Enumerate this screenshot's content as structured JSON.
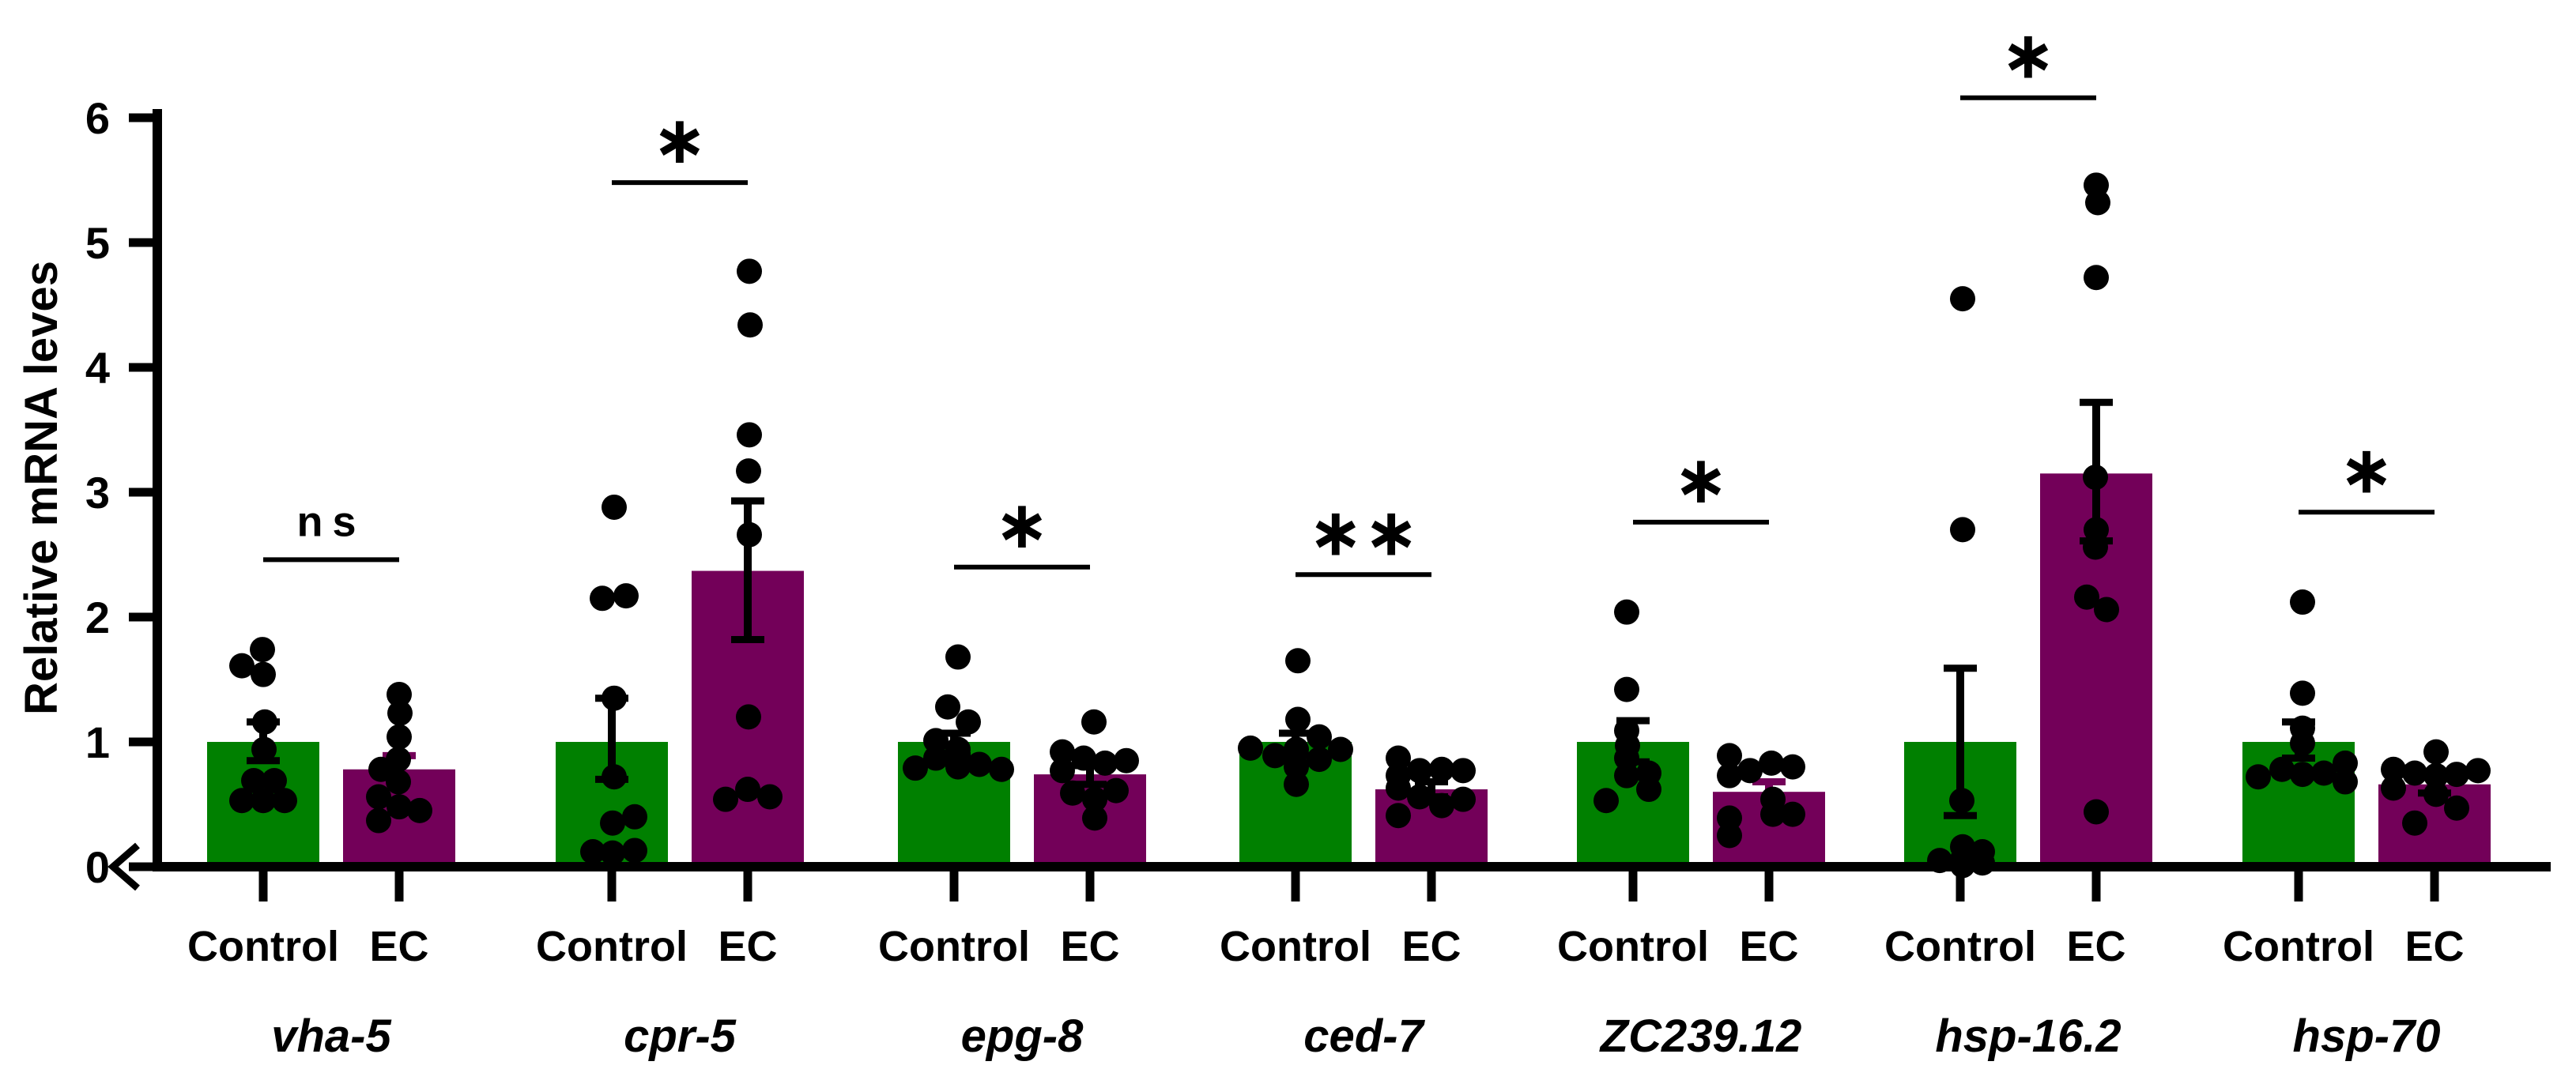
{
  "figure": {
    "background": "#ffffff"
  },
  "chart_data": {
    "type": "bar",
    "title": "",
    "ylabel": "Relative mRNA leves",
    "xlabel": "",
    "ylim": [
      0,
      6
    ],
    "yticks": [
      0,
      1,
      2,
      3,
      4,
      5,
      6
    ],
    "grid": false,
    "legend": "none",
    "origin_arrow": "<",
    "series_names": [
      "Control",
      "EC"
    ],
    "colors": {
      "control": "#008000",
      "ec": "#730059",
      "dots": "#000000",
      "axis": "#000000"
    },
    "groups": [
      {
        "gene": "vha-5",
        "sig": "ns",
        "sig_y": 2.46,
        "bars": [
          {
            "label": "Control",
            "value": 1.0,
            "color": "#008000",
            "err": [
              0.85,
              1.16
            ],
            "err_color": "#000000",
            "dots": [
              [
                -1,
                1.74
              ],
              [
                -27,
                1.61
              ],
              [
                0,
                1.54
              ],
              [
                2,
                1.16
              ],
              [
                1,
                0.94
              ],
              [
                -12,
                0.69
              ],
              [
                14,
                0.69
              ],
              [
                -27,
                0.53
              ],
              [
                0,
                0.53
              ],
              [
                27,
                0.53
              ]
            ]
          },
          {
            "label": "EC",
            "value": 0.78,
            "color": "#730059",
            "err": [
              0.67,
              0.89
            ],
            "err_color": "#730059",
            "dots": [
              [
                0,
                1.38
              ],
              [
                1,
                1.23
              ],
              [
                0,
                1.04
              ],
              [
                -1,
                0.86
              ],
              [
                -23,
                0.78
              ],
              [
                -1,
                0.68
              ],
              [
                -26,
                0.56
              ],
              [
                0,
                0.48
              ],
              [
                26,
                0.45
              ],
              [
                -26,
                0.37
              ]
            ]
          }
        ]
      },
      {
        "gene": "cpr-5",
        "sig": "*",
        "sig_y": 5.48,
        "bars": [
          {
            "label": "Control",
            "value": 1.0,
            "color": "#008000",
            "err": [
              0.7,
              1.35
            ],
            "err_color": "#000000",
            "dots": [
              [
                3,
                2.88
              ],
              [
                -12,
                2.15
              ],
              [
                18,
                2.17
              ],
              [
                3,
                1.35
              ],
              [
                3,
                0.72
              ],
              [
                1,
                0.35
              ],
              [
                29,
                0.4
              ],
              [
                -24,
                0.12
              ],
              [
                1,
                0.11
              ],
              [
                29,
                0.13
              ]
            ]
          },
          {
            "label": "EC",
            "value": 2.37,
            "color": "#730059",
            "err": [
              1.82,
              2.93
            ],
            "err_color": "#000000",
            "dots": [
              [
                2,
                4.77
              ],
              [
                3,
                4.34
              ],
              [
                2,
                3.46
              ],
              [
                1,
                3.17
              ],
              [
                2,
                2.66
              ],
              [
                1,
                1.2
              ],
              [
                0,
                0.62
              ],
              [
                -28,
                0.54
              ],
              [
                28,
                0.56
              ]
            ]
          }
        ]
      },
      {
        "gene": "epg-8",
        "sig": "*",
        "sig_y": 2.4,
        "bars": [
          {
            "label": "Control",
            "value": 1.0,
            "color": "#008000",
            "err": [
              0.89,
              1.07
            ],
            "err_color": "#000000",
            "dots": [
              [
                5,
                1.68
              ],
              [
                -8,
                1.28
              ],
              [
                18,
                1.16
              ],
              [
                -23,
                1.01
              ],
              [
                5,
                0.94
              ],
              [
                -23,
                0.87
              ],
              [
                -49,
                0.79
              ],
              [
                5,
                0.8
              ],
              [
                32,
                0.82
              ],
              [
                60,
                0.78
              ]
            ]
          },
          {
            "label": "EC",
            "value": 0.74,
            "color": "#730059",
            "err": [
              0.66,
              0.81
            ],
            "err_color": "#000000",
            "dots": [
              [
                5,
                1.16
              ],
              [
                -35,
                0.92
              ],
              [
                -8,
                0.87
              ],
              [
                19,
                0.83
              ],
              [
                46,
                0.85
              ],
              [
                -35,
                0.77
              ],
              [
                -22,
                0.59
              ],
              [
                33,
                0.61
              ],
              [
                6,
                0.54
              ],
              [
                6,
                0.39
              ]
            ]
          }
        ]
      },
      {
        "gene": "ced-7",
        "sig": "**",
        "sig_y": 2.34,
        "bars": [
          {
            "label": "Control",
            "value": 1.0,
            "color": "#008000",
            "err": [
              0.89,
              1.07
            ],
            "err_color": "#000000",
            "dots": [
              [
                3,
                1.65
              ],
              [
                3,
                1.18
              ],
              [
                30,
                1.04
              ],
              [
                -57,
                0.95
              ],
              [
                1,
                0.94
              ],
              [
                57,
                0.94
              ],
              [
                -26,
                0.89
              ],
              [
                30,
                0.86
              ],
              [
                1,
                0.8
              ],
              [
                1,
                0.66
              ]
            ]
          },
          {
            "label": "EC",
            "value": 0.62,
            "color": "#730059",
            "err": [
              0.56,
              0.68
            ],
            "err_color": "#000000",
            "dots": [
              [
                -42,
                0.87
              ],
              [
                -42,
                0.73
              ],
              [
                -15,
                0.77
              ],
              [
                13,
                0.78
              ],
              [
                40,
                0.77
              ],
              [
                -42,
                0.63
              ],
              [
                -15,
                0.56
              ],
              [
                13,
                0.49
              ],
              [
                40,
                0.54
              ],
              [
                -42,
                0.41
              ]
            ]
          }
        ]
      },
      {
        "gene": "ZC239.12",
        "sig": "*",
        "sig_y": 2.76,
        "bars": [
          {
            "label": "Control",
            "value": 1.0,
            "color": "#008000",
            "err": [
              0.84,
              1.17
            ],
            "err_color": "#000000",
            "dots": [
              [
                -8,
                2.04
              ],
              [
                -8,
                1.42
              ],
              [
                -8,
                1.09
              ],
              [
                -7,
                0.97
              ],
              [
                -8,
                0.87
              ],
              [
                -8,
                0.73
              ],
              [
                20,
                0.75
              ],
              [
                20,
                0.62
              ],
              [
                -34,
                0.53
              ]
            ]
          },
          {
            "label": "EC",
            "value": 0.6,
            "color": "#730059",
            "err": [
              0.52,
              0.68
            ],
            "err_color": "#730059",
            "dots": [
              [
                -50,
                0.89
              ],
              [
                -50,
                0.73
              ],
              [
                -24,
                0.77
              ],
              [
                3,
                0.83
              ],
              [
                30,
                0.8
              ],
              [
                5,
                0.54
              ],
              [
                30,
                0.42
              ],
              [
                5,
                0.42
              ],
              [
                -50,
                0.39
              ],
              [
                -50,
                0.25
              ]
            ]
          }
        ]
      },
      {
        "gene": "hsp-16.2",
        "sig": "*",
        "sig_y": 6.16,
        "bars": [
          {
            "label": "Control",
            "value": 1.0,
            "color": "#008000",
            "err": [
              0.41,
              1.59
            ],
            "err_color": "#000000",
            "dots": [
              [
                3,
                4.55
              ],
              [
                3,
                2.7
              ],
              [
                2,
                0.53
              ],
              [
                3,
                0.16
              ],
              [
                -26,
                0.05
              ],
              [
                28,
                0.12
              ],
              [
                3,
                0.06
              ],
              [
                28,
                0.03
              ],
              [
                3,
                0.01
              ]
            ]
          },
          {
            "label": "EC",
            "value": 3.15,
            "color": "#730059",
            "err": [
              2.61,
              3.72
            ],
            "err_color": "#000000",
            "dots": [
              [
                0,
                5.46
              ],
              [
                2,
                5.32
              ],
              [
                0,
                4.72
              ],
              [
                -1,
                3.12
              ],
              [
                0,
                2.7
              ],
              [
                -1,
                2.56
              ],
              [
                -12,
                2.16
              ],
              [
                13,
                2.06
              ],
              [
                0,
                0.44
              ]
            ]
          }
        ]
      },
      {
        "gene": "hsp-70",
        "sig": "*",
        "sig_y": 2.84,
        "bars": [
          {
            "label": "Control",
            "value": 1.0,
            "color": "#008000",
            "err": [
              0.87,
              1.16
            ],
            "err_color": "#000000",
            "dots": [
              [
                5,
                2.12
              ],
              [
                5,
                1.39
              ],
              [
                5,
                1.11
              ],
              [
                5,
                0.99
              ],
              [
                -21,
                0.78
              ],
              [
                -51,
                0.72
              ],
              [
                5,
                0.74
              ],
              [
                32,
                0.75
              ],
              [
                59,
                0.83
              ],
              [
                59,
                0.68
              ]
            ]
          },
          {
            "label": "EC",
            "value": 0.66,
            "color": "#730059",
            "err": [
              0.59,
              0.73
            ],
            "err_color": "#000000",
            "dots": [
              [
                -52,
                0.78
              ],
              [
                -52,
                0.63
              ],
              [
                -25,
                0.75
              ],
              [
                2,
                0.92
              ],
              [
                2,
                0.73
              ],
              [
                2,
                0.58
              ],
              [
                28,
                0.74
              ],
              [
                28,
                0.47
              ],
              [
                55,
                0.77
              ],
              [
                -25,
                0.35
              ]
            ]
          }
        ]
      }
    ]
  }
}
